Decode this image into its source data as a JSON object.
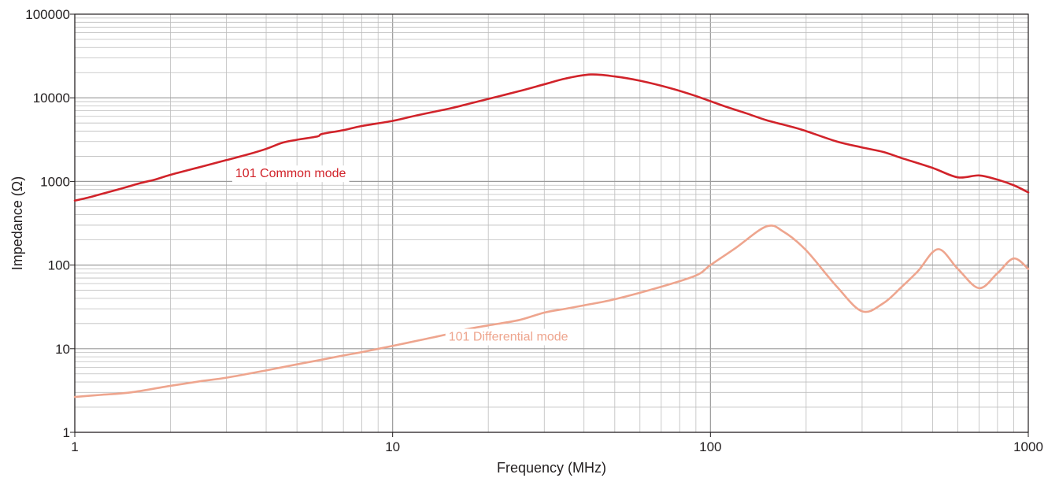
{
  "chart_data": {
    "type": "line",
    "title": "",
    "xlabel": "Frequency (MHz)",
    "ylabel": "Impedance (Ω)",
    "xscale": "log",
    "yscale": "log",
    "xlim": [
      1,
      1000
    ],
    "ylim": [
      1,
      100000
    ],
    "grid": true,
    "legend": "none (inline series labels)",
    "x_ticks": [
      "1",
      "10",
      "100",
      "1000"
    ],
    "y_ticks": [
      "1",
      "10",
      "100",
      "1000",
      "10000",
      "100000"
    ],
    "series": [
      {
        "name": "101 Common mode",
        "color": "#d1232a",
        "label_at": [
          3.2,
          1120
        ],
        "points": [
          [
            1,
            590
          ],
          [
            1.1,
            640
          ],
          [
            1.2,
            700
          ],
          [
            1.4,
            820
          ],
          [
            1.6,
            950
          ],
          [
            1.8,
            1060
          ],
          [
            2,
            1200
          ],
          [
            2.5,
            1500
          ],
          [
            3,
            1800
          ],
          [
            3.5,
            2100
          ],
          [
            4,
            2450
          ],
          [
            4.5,
            2900
          ],
          [
            5,
            3150
          ],
          [
            5.8,
            3450
          ],
          [
            6,
            3700
          ],
          [
            7,
            4100
          ],
          [
            8,
            4600
          ],
          [
            10,
            5300
          ],
          [
            12,
            6200
          ],
          [
            15,
            7400
          ],
          [
            17,
            8300
          ],
          [
            20,
            9700
          ],
          [
            25,
            12000
          ],
          [
            30,
            14500
          ],
          [
            35,
            17000
          ],
          [
            42,
            19000
          ],
          [
            50,
            18000
          ],
          [
            60,
            16000
          ],
          [
            75,
            13000
          ],
          [
            90,
            10500
          ],
          [
            110,
            8000
          ],
          [
            130,
            6500
          ],
          [
            150,
            5400
          ],
          [
            180,
            4500
          ],
          [
            200,
            4000
          ],
          [
            250,
            3000
          ],
          [
            300,
            2550
          ],
          [
            350,
            2250
          ],
          [
            400,
            1900
          ],
          [
            500,
            1450
          ],
          [
            600,
            1120
          ],
          [
            700,
            1180
          ],
          [
            800,
            1050
          ],
          [
            900,
            900
          ],
          [
            1000,
            740
          ]
        ]
      },
      {
        "name": "101 Differential mode",
        "color": "#eea58e",
        "label_at": [
          15,
          12.5
        ],
        "points": [
          [
            1,
            2.65
          ],
          [
            1.2,
            2.8
          ],
          [
            1.5,
            3.0
          ],
          [
            2,
            3.6
          ],
          [
            2.5,
            4.1
          ],
          [
            3,
            4.5
          ],
          [
            4,
            5.5
          ],
          [
            5,
            6.5
          ],
          [
            6,
            7.4
          ],
          [
            7,
            8.3
          ],
          [
            8,
            9.1
          ],
          [
            10,
            10.8
          ],
          [
            12,
            12.5
          ],
          [
            15,
            15
          ],
          [
            17,
            17
          ],
          [
            20,
            19
          ],
          [
            25,
            22
          ],
          [
            30,
            27
          ],
          [
            35,
            30
          ],
          [
            40,
            33
          ],
          [
            50,
            39
          ],
          [
            70,
            55
          ],
          [
            90,
            75
          ],
          [
            100,
            100
          ],
          [
            120,
            160
          ],
          [
            150,
            290
          ],
          [
            170,
            250
          ],
          [
            200,
            150
          ],
          [
            250,
            55
          ],
          [
            300,
            28
          ],
          [
            350,
            35
          ],
          [
            400,
            55
          ],
          [
            450,
            85
          ],
          [
            520,
            155
          ],
          [
            600,
            90
          ],
          [
            700,
            53
          ],
          [
            800,
            80
          ],
          [
            900,
            120
          ],
          [
            1000,
            90
          ]
        ]
      }
    ]
  }
}
